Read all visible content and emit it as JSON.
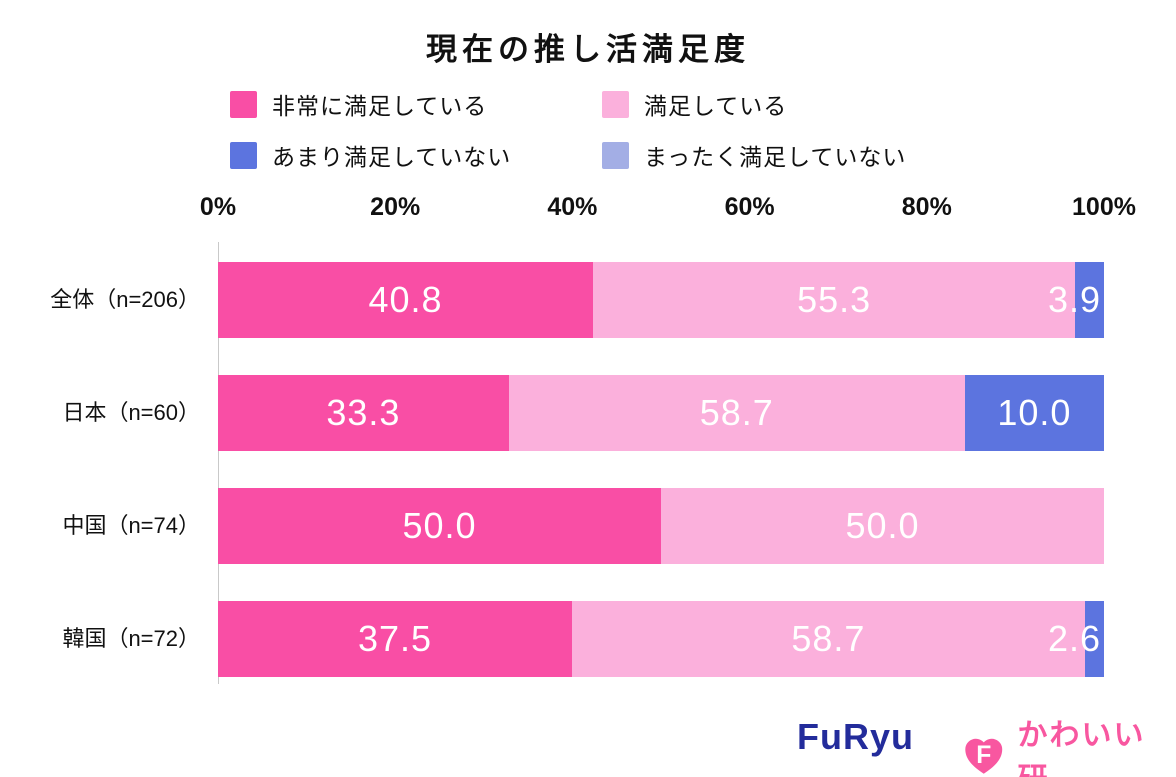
{
  "title": "現在の推し活満足度",
  "chart_data": {
    "type": "bar",
    "orientation": "horizontal-stacked",
    "title": "現在の推し活満足度",
    "unit": "%",
    "legend_position": "top",
    "series": [
      {
        "name": "非常に満足している",
        "color": "#F94EA5"
      },
      {
        "name": "満足している",
        "color": "#FBB0DC"
      },
      {
        "name": "あまり満足していない",
        "color": "#5C74DF"
      },
      {
        "name": "まったく満足していない",
        "color": "#A3AEE5"
      }
    ],
    "categories": [
      "全体（n=206）",
      "日本（n=60）",
      "中国（n=74）",
      "韓国（n=72）"
    ],
    "values": [
      [
        40.8,
        55.3,
        3.9,
        0
      ],
      [
        33.3,
        58.7,
        10.0,
        0
      ],
      [
        50.0,
        50.0,
        0,
        0
      ],
      [
        37.5,
        58.7,
        2.6,
        0
      ]
    ],
    "axis": {
      "ticks": [
        "0%",
        "20%",
        "40%",
        "60%",
        "80%",
        "100%"
      ],
      "range": [
        0,
        100
      ],
      "grid": false
    },
    "xlabel": "",
    "ylabel": ""
  },
  "footer": {
    "furyu_logo_text": "FuRyu",
    "furyu_color": "#232C9B",
    "kawaii_ken_text": "かわいい研",
    "kawaii_color": "#F857A0",
    "kawaii_mark_letter": "F"
  }
}
